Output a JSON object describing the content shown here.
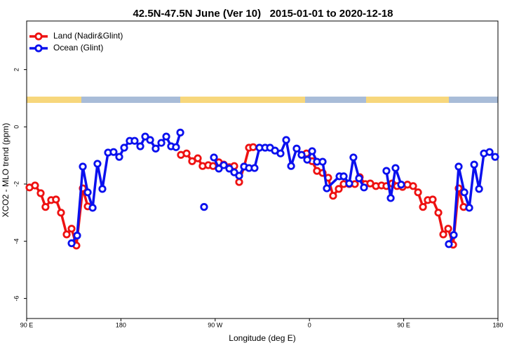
{
  "chart_data": {
    "type": "line",
    "title": "42.5N-47.5N June (Ver 10)   2015-01-01 to 2020-12-18",
    "x_label": "Longitude (deg E)",
    "y_label": "XCO2 - MLO trend (ppm)",
    "xlim": [
      90,
      540
    ],
    "xticks": [
      {
        "value": 90,
        "label": "90 E"
      },
      {
        "value": 180,
        "label": "180"
      },
      {
        "value": 270,
        "label": "90 W"
      },
      {
        "value": 360,
        "label": "0"
      },
      {
        "value": 450,
        "label": "90 E"
      },
      {
        "value": 540,
        "label": "180"
      }
    ],
    "ylim": [
      -6.7,
      3.7
    ],
    "yticks": [
      -6,
      -4,
      -2,
      0,
      2
    ],
    "legend": "top-left",
    "series": [
      {
        "name": "Land (Nadir&Glint)",
        "color": "#ee1111",
        "x": [
          92.7,
          98,
          103.4,
          108,
          113.4,
          118,
          122.8,
          128.2,
          132.9,
          137.5,
          143.6,
          148.3,
          190,
          237.3,
          242.7,
          248,
          253.4,
          258,
          263.4,
          268,
          273.5,
          278.2,
          283.5,
          288.2,
          292.9,
          297.6,
          302.3,
          306.3,
          330,
          357.2,
          362.6,
          367.2,
          372.6,
          377.9,
          382.6,
          388,
          392.7,
          398,
          403.4,
          408,
          413.4,
          418.1,
          423.5,
          428.8,
          433.5,
          438.9,
          443.6,
          448.9,
          453.6,
          459,
          463.7,
          468.4,
          473,
          477.7,
          483.1,
          487.8,
          492.5,
          497.2,
          502.5,
          507.2
        ],
        "values": [
          -2.12,
          -2.05,
          -2.32,
          -2.8,
          -2.56,
          -2.54,
          -3.0,
          -3.76,
          -3.56,
          -4.15,
          -2.15,
          -2.78,
          null,
          -0.98,
          -0.93,
          -1.2,
          -1.1,
          -1.37,
          -1.34,
          -1.37,
          -1.24,
          -1.32,
          -1.41,
          -1.37,
          -1.93,
          -1.39,
          -0.73,
          -0.71,
          null,
          -0.93,
          -1.2,
          -1.54,
          -1.61,
          -1.78,
          -2.41,
          -2.17,
          -2.0,
          -2.0,
          -2.0,
          -1.76,
          -2.0,
          -1.98,
          -2.07,
          -2.05,
          -2.07,
          -1.98,
          -2.07,
          -2.1,
          -2.02,
          -2.07,
          -2.29,
          -2.8,
          -2.56,
          -2.54,
          -3.0,
          -3.76,
          -3.56,
          -4.12,
          -2.15,
          -2.8
        ]
      },
      {
        "name": "Ocean (Glint)",
        "color": "#0a10ee",
        "x": [
          132.9,
          138.2,
          143.6,
          148.3,
          153,
          157.6,
          162.3,
          167.7,
          173,
          178.4,
          183.1,
          188.4,
          193.1,
          198.5,
          203.2,
          207.9,
          213.2,
          218.6,
          223.3,
          227.9,
          232.6,
          236.7,
          248,
          259.4,
          264,
          268.8,
          273.5,
          278.2,
          283.5,
          288.2,
          292.9,
          297.6,
          302.3,
          307.6,
          312.3,
          317.7,
          322.4,
          327.1,
          332.4,
          337.8,
          342.5,
          347.8,
          352.5,
          357.9,
          362.6,
          367.2,
          372.6,
          376.6,
          388.7,
          392.7,
          398,
          402,
          407.4,
          412.1,
          422,
          433.5,
          437.6,
          442.2,
          447.6,
          470,
          493.1,
          497.8,
          502.5,
          507.9,
          512.6,
          517.3,
          522,
          526.6,
          532,
          537.3
        ],
        "values": [
          -4.07,
          -3.8,
          -1.39,
          -2.29,
          -2.83,
          -1.29,
          -2.17,
          -0.9,
          -0.88,
          -1.05,
          -0.73,
          -0.49,
          -0.49,
          -0.68,
          -0.34,
          -0.46,
          -0.76,
          -0.56,
          -0.34,
          -0.68,
          -0.71,
          -0.2,
          null,
          -2.8,
          null,
          -1.07,
          -1.46,
          -1.34,
          -1.46,
          -1.59,
          -1.71,
          -1.39,
          -1.44,
          -1.44,
          -0.73,
          -0.73,
          -0.73,
          -0.83,
          -0.93,
          -0.46,
          -1.37,
          -0.76,
          -0.98,
          -1.15,
          -0.85,
          -1.22,
          -1.22,
          -2.15,
          -1.73,
          -1.73,
          -1.98,
          -1.07,
          -1.8,
          -2.12,
          null,
          -1.54,
          -2.49,
          -1.44,
          -2.02,
          null,
          -4.1,
          -3.78,
          -1.39,
          -2.29,
          -2.83,
          -1.32,
          -2.17,
          -0.93,
          -0.88,
          -1.05
        ]
      }
    ]
  }
}
